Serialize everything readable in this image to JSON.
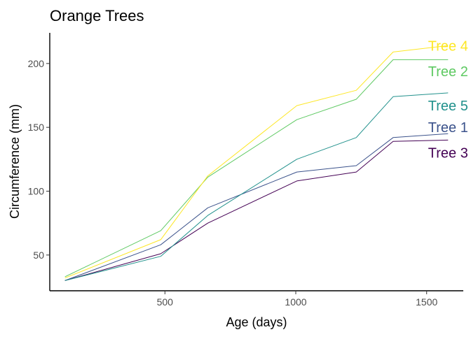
{
  "chart_data": {
    "type": "line",
    "title": "Orange Trees",
    "xlabel": "Age (days)",
    "ylabel": "Circumference (mm)",
    "xlim": [
      60,
      1640
    ],
    "ylim": [
      22,
      224
    ],
    "xticks": [
      500,
      1000,
      1500
    ],
    "yticks": [
      50,
      100,
      150,
      200
    ],
    "grid": false,
    "legend": "none",
    "x": [
      118,
      484,
      664,
      1004,
      1231,
      1372,
      1582
    ],
    "series": [
      {
        "name": "Tree 1",
        "color": "#3b528b",
        "values": [
          30,
          58,
          87,
          115,
          120,
          142,
          145
        ]
      },
      {
        "name": "Tree 2",
        "color": "#5ec962",
        "values": [
          33,
          69,
          111,
          156,
          172,
          203,
          203
        ]
      },
      {
        "name": "Tree 3",
        "color": "#440154",
        "values": [
          30,
          51,
          75,
          108,
          115,
          139,
          140
        ]
      },
      {
        "name": "Tree 4",
        "color": "#fde725",
        "values": [
          32,
          62,
          112,
          167,
          179,
          209,
          214
        ]
      },
      {
        "name": "Tree 5",
        "color": "#21918c",
        "values": [
          30,
          49,
          81,
          125,
          142,
          174,
          177
        ]
      }
    ],
    "series_labels": [
      {
        "series": "Tree 4",
        "text": "Tree 4",
        "x": 1582,
        "y": 214
      },
      {
        "series": "Tree 2",
        "text": "Tree 2",
        "x": 1582,
        "y": 194
      },
      {
        "series": "Tree 5",
        "text": "Tree 5",
        "x": 1582,
        "y": 167
      },
      {
        "series": "Tree 1",
        "text": "Tree 1",
        "x": 1582,
        "y": 150
      },
      {
        "series": "Tree 3",
        "text": "Tree 3",
        "x": 1582,
        "y": 130
      }
    ]
  }
}
